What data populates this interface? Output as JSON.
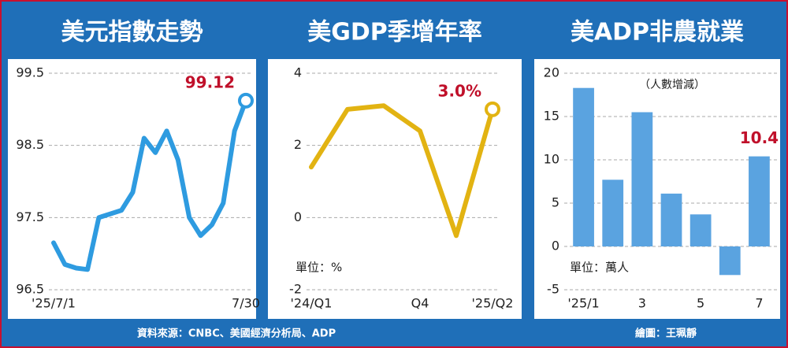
{
  "chart_data": [
    {
      "type": "line",
      "title": "美元指數走勢",
      "categories": [
        "'25/7/1",
        null,
        null,
        null,
        null,
        null,
        null,
        null,
        null,
        null,
        null,
        null,
        null,
        null,
        null,
        null,
        null,
        "7/30"
      ],
      "values": [
        97.15,
        96.85,
        96.8,
        96.78,
        97.5,
        97.55,
        97.6,
        97.85,
        98.6,
        98.4,
        98.7,
        98.3,
        97.5,
        97.25,
        97.4,
        97.7,
        98.7,
        99.12
      ],
      "value_labels": [
        null,
        null,
        null,
        null,
        null,
        null,
        null,
        null,
        null,
        null,
        null,
        null,
        null,
        null,
        null,
        null,
        null,
        "99.12"
      ],
      "color": "#2e9be0",
      "ylim": [
        96.5,
        99.5
      ],
      "yticks": [
        96.5,
        97.5,
        98.5,
        99.5
      ],
      "grid": true
    },
    {
      "type": "line",
      "title": "美GDP季增年率",
      "unit_note": "單位：%",
      "categories": [
        "'24/Q1",
        null,
        null,
        "Q4",
        null,
        "'25/Q2"
      ],
      "values": [
        1.4,
        3.0,
        3.1,
        2.4,
        -0.5,
        3.0
      ],
      "value_labels": [
        null,
        null,
        null,
        null,
        null,
        "3.0%"
      ],
      "color": "#e2b312",
      "ylim": [
        -2,
        4
      ],
      "yticks": [
        -2,
        0,
        2,
        4
      ],
      "grid": true
    },
    {
      "type": "bar",
      "title": "美ADP非農就業",
      "subtitle": "（人數增減）",
      "unit_note": "單位：萬人",
      "categories": [
        "'25/1",
        null,
        "3",
        null,
        "5",
        null,
        "7"
      ],
      "values": [
        18.3,
        7.7,
        15.5,
        6.1,
        3.7,
        -3.3,
        10.4
      ],
      "value_labels": [
        null,
        null,
        null,
        null,
        null,
        null,
        "10.4"
      ],
      "color": "#5aa3e0",
      "ylim": [
        -5,
        20
      ],
      "yticks": [
        -5,
        0,
        5,
        10,
        15,
        20
      ],
      "grid": true
    }
  ],
  "footer": {
    "source": "資料來源：CNBC、美國經濟分析局、ADP",
    "credit": "繪圖：王珮靜"
  }
}
